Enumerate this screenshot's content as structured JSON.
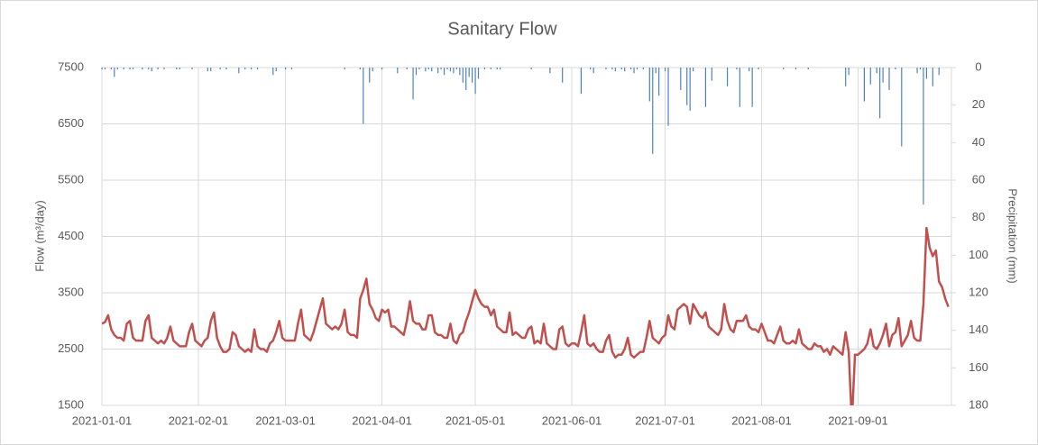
{
  "chart_data": {
    "type": "line_bar",
    "title": "Sanitary Flow",
    "y_label": "Flow (m³/day)",
    "y2_label": "Precipitation (mm)",
    "x": [
      "2021-01-01",
      "2021-01-02",
      "2021-01-03",
      "2021-01-04",
      "2021-01-05",
      "2021-01-06",
      "2021-01-07",
      "2021-01-08",
      "2021-01-09",
      "2021-01-10",
      "2021-01-11",
      "2021-01-12",
      "2021-01-13",
      "2021-01-14",
      "2021-01-15",
      "2021-01-16",
      "2021-01-17",
      "2021-01-18",
      "2021-01-19",
      "2021-01-20",
      "2021-01-21",
      "2021-01-22",
      "2021-01-23",
      "2021-01-24",
      "2021-01-25",
      "2021-01-26",
      "2021-01-27",
      "2021-01-28",
      "2021-01-29",
      "2021-01-30",
      "2021-01-31",
      "2021-02-01",
      "2021-02-02",
      "2021-02-03",
      "2021-02-04",
      "2021-02-05",
      "2021-02-06",
      "2021-02-07",
      "2021-02-08",
      "2021-02-09",
      "2021-02-10",
      "2021-02-11",
      "2021-02-12",
      "2021-02-13",
      "2021-02-14",
      "2021-02-15",
      "2021-02-16",
      "2021-02-17",
      "2021-02-18",
      "2021-02-19",
      "2021-02-20",
      "2021-02-21",
      "2021-02-22",
      "2021-02-23",
      "2021-02-24",
      "2021-02-25",
      "2021-02-26",
      "2021-02-27",
      "2021-02-28",
      "2021-03-01",
      "2021-03-02",
      "2021-03-03",
      "2021-03-04",
      "2021-03-05",
      "2021-03-06",
      "2021-03-07",
      "2021-03-08",
      "2021-03-09",
      "2021-03-10",
      "2021-03-11",
      "2021-03-12",
      "2021-03-13",
      "2021-03-14",
      "2021-03-15",
      "2021-03-16",
      "2021-03-17",
      "2021-03-18",
      "2021-03-19",
      "2021-03-20",
      "2021-03-21",
      "2021-03-22",
      "2021-03-23",
      "2021-03-24",
      "2021-03-25",
      "2021-03-26",
      "2021-03-27",
      "2021-03-28",
      "2021-03-29",
      "2021-03-30",
      "2021-03-31",
      "2021-04-01",
      "2021-04-02",
      "2021-04-03",
      "2021-04-04",
      "2021-04-05",
      "2021-04-06",
      "2021-04-07",
      "2021-04-08",
      "2021-04-09",
      "2021-04-10",
      "2021-04-11",
      "2021-04-12",
      "2021-04-13",
      "2021-04-14",
      "2021-04-15",
      "2021-04-16",
      "2021-04-17",
      "2021-04-18",
      "2021-04-19",
      "2021-04-20",
      "2021-04-21",
      "2021-04-22",
      "2021-04-23",
      "2021-04-24",
      "2021-04-25",
      "2021-04-26",
      "2021-04-27",
      "2021-04-28",
      "2021-04-29",
      "2021-04-30",
      "2021-05-01",
      "2021-05-02",
      "2021-05-03",
      "2021-05-04",
      "2021-05-05",
      "2021-05-06",
      "2021-05-07",
      "2021-05-08",
      "2021-05-09",
      "2021-05-10",
      "2021-05-11",
      "2021-05-12",
      "2021-05-13",
      "2021-05-14",
      "2021-05-15",
      "2021-05-16",
      "2021-05-17",
      "2021-05-18",
      "2021-05-19",
      "2021-05-20",
      "2021-05-21",
      "2021-05-22",
      "2021-05-23",
      "2021-05-24",
      "2021-05-25",
      "2021-05-26",
      "2021-05-27",
      "2021-05-28",
      "2021-05-29",
      "2021-05-30",
      "2021-05-31",
      "2021-06-01",
      "2021-06-02",
      "2021-06-03",
      "2021-06-04",
      "2021-06-05",
      "2021-06-06",
      "2021-06-07",
      "2021-06-08",
      "2021-06-09",
      "2021-06-10",
      "2021-06-11",
      "2021-06-12",
      "2021-06-13",
      "2021-06-14",
      "2021-06-15",
      "2021-06-16",
      "2021-06-17",
      "2021-06-18",
      "2021-06-19",
      "2021-06-20",
      "2021-06-21",
      "2021-06-22",
      "2021-06-23",
      "2021-06-24",
      "2021-06-25",
      "2021-06-26",
      "2021-06-27",
      "2021-06-28",
      "2021-06-29",
      "2021-06-30",
      "2021-07-01",
      "2021-07-02",
      "2021-07-03",
      "2021-07-04",
      "2021-07-05",
      "2021-07-06",
      "2021-07-07",
      "2021-07-08",
      "2021-07-09",
      "2021-07-10",
      "2021-07-11",
      "2021-07-12",
      "2021-07-13",
      "2021-07-14",
      "2021-07-15",
      "2021-07-16",
      "2021-07-17",
      "2021-07-18",
      "2021-07-19",
      "2021-07-20",
      "2021-07-21",
      "2021-07-22",
      "2021-07-23",
      "2021-07-24",
      "2021-07-25",
      "2021-07-26",
      "2021-07-27",
      "2021-07-28",
      "2021-07-29",
      "2021-07-30",
      "2021-07-31",
      "2021-08-01",
      "2021-08-02",
      "2021-08-03",
      "2021-08-04",
      "2021-08-05",
      "2021-08-06",
      "2021-08-07",
      "2021-08-08",
      "2021-08-09",
      "2021-08-10",
      "2021-08-11",
      "2021-08-12",
      "2021-08-13",
      "2021-08-14",
      "2021-08-15",
      "2021-08-16",
      "2021-08-17",
      "2021-08-18",
      "2021-08-19",
      "2021-08-20",
      "2021-08-21",
      "2021-08-22",
      "2021-08-23",
      "2021-08-24",
      "2021-08-25",
      "2021-08-26",
      "2021-08-27",
      "2021-08-28",
      "2021-08-29",
      "2021-08-30",
      "2021-08-31",
      "2021-09-01",
      "2021-09-02",
      "2021-09-03",
      "2021-09-04",
      "2021-09-05",
      "2021-09-06",
      "2021-09-07",
      "2021-09-08",
      "2021-09-09",
      "2021-09-10",
      "2021-09-11",
      "2021-09-12",
      "2021-09-13",
      "2021-09-14",
      "2021-09-15",
      "2021-09-16",
      "2021-09-17",
      "2021-09-18",
      "2021-09-19",
      "2021-09-20",
      "2021-09-21",
      "2021-09-22",
      "2021-09-23",
      "2021-09-24",
      "2021-09-25",
      "2021-09-26",
      "2021-09-27",
      "2021-09-28",
      "2021-09-29",
      "2021-09-30"
    ],
    "series": [
      {
        "type": "line",
        "axis": "y",
        "color": "#c0504d",
        "values": [
          2950,
          2980,
          3100,
          2850,
          2750,
          2700,
          2700,
          2650,
          2950,
          3000,
          2700,
          2650,
          2650,
          2650,
          3000,
          3100,
          2700,
          2650,
          2600,
          2650,
          2600,
          2700,
          2900,
          2650,
          2600,
          2550,
          2550,
          2550,
          2800,
          2950,
          2650,
          2600,
          2550,
          2650,
          2700,
          3000,
          3150,
          2700,
          2550,
          2450,
          2450,
          2500,
          2800,
          2750,
          2550,
          2500,
          2450,
          2500,
          2450,
          2850,
          2550,
          2500,
          2500,
          2450,
          2600,
          2650,
          2800,
          3000,
          2700,
          2650,
          2650,
          2650,
          2650,
          2950,
          3200,
          2750,
          2700,
          2650,
          2800,
          3000,
          3200,
          3400,
          2950,
          2900,
          2850,
          2900,
          2850,
          2950,
          3200,
          2800,
          2750,
          2750,
          2700,
          3400,
          3550,
          3750,
          3300,
          3200,
          3050,
          3000,
          3200,
          3150,
          3200,
          2900,
          2900,
          2850,
          2800,
          2750,
          3000,
          3350,
          3000,
          2950,
          2950,
          2850,
          2850,
          3100,
          3100,
          2800,
          2750,
          2750,
          2700,
          2700,
          2950,
          2650,
          2600,
          2750,
          2800,
          3000,
          3150,
          3350,
          3550,
          3400,
          3300,
          3250,
          3250,
          3100,
          3200,
          2900,
          2850,
          2800,
          2800,
          3150,
          2750,
          2800,
          2750,
          2700,
          2700,
          2850,
          2900,
          2600,
          2650,
          2600,
          2950,
          2600,
          2550,
          2500,
          2500,
          2850,
          2900,
          2600,
          2550,
          2600,
          2600,
          2550,
          2800,
          3100,
          2600,
          2550,
          2600,
          2500,
          2450,
          2450,
          2650,
          2750,
          2450,
          2350,
          2400,
          2400,
          2500,
          2700,
          2400,
          2350,
          2400,
          2450,
          2450,
          2700,
          3000,
          2700,
          2650,
          2600,
          2700,
          2750,
          3100,
          2900,
          2850,
          3200,
          3250,
          3300,
          3250,
          2950,
          3300,
          3200,
          3100,
          3050,
          3150,
          2900,
          2850,
          2800,
          2750,
          2850,
          3300,
          3000,
          2850,
          2800,
          3000,
          3000,
          3000,
          3100,
          2900,
          2850,
          2850,
          2800,
          2950,
          2800,
          2650,
          2650,
          2600,
          2750,
          2900,
          2650,
          2600,
          2600,
          2650,
          2600,
          2850,
          2600,
          2550,
          2500,
          2500,
          2600,
          2550,
          2550,
          2450,
          2500,
          2400,
          2550,
          2500,
          2450,
          2400,
          2800,
          2450,
          1200,
          2400,
          2400,
          2450,
          2500,
          2600,
          2850,
          2550,
          2500,
          2600,
          2750,
          2950,
          2550,
          2750,
          2800,
          3050,
          2550,
          2650,
          2750,
          3000,
          2700,
          2650,
          2650,
          3300,
          4650,
          4300,
          4150,
          4250,
          3700,
          3600,
          3400,
          3250
        ]
      },
      {
        "type": "bar",
        "axis": "y2",
        "color": "#4f81bd",
        "values": [
          1,
          1,
          0,
          1,
          5,
          1,
          0,
          1,
          0,
          1,
          1,
          0,
          0,
          1,
          0,
          1,
          2,
          0,
          1,
          0,
          1,
          0,
          0,
          0,
          1,
          1,
          0,
          0,
          0,
          1,
          0,
          0,
          0,
          0,
          2,
          2,
          0,
          0,
          1,
          0,
          1,
          0,
          0,
          0,
          3,
          0,
          1,
          0,
          1,
          0,
          1,
          0,
          0,
          0,
          0,
          4,
          2,
          0,
          0,
          1,
          0,
          1,
          0,
          0,
          0,
          0,
          0,
          0,
          0,
          0,
          0,
          0,
          0,
          0,
          0,
          0,
          0,
          0,
          1,
          0,
          0,
          0,
          0,
          1,
          30,
          0,
          8,
          2,
          0,
          0,
          1,
          0,
          0,
          0,
          0,
          3,
          0,
          0,
          1,
          0,
          17,
          4,
          1,
          0,
          2,
          1,
          2,
          0,
          3,
          1,
          4,
          1,
          2,
          3,
          1,
          4,
          8,
          12,
          5,
          8,
          14,
          6,
          0,
          1,
          0,
          1,
          0,
          1,
          1,
          0,
          0,
          0,
          0,
          0,
          0,
          0,
          0,
          0,
          1,
          0,
          0,
          0,
          0,
          0,
          3,
          0,
          0,
          0,
          8,
          0,
          0,
          0,
          0,
          0,
          14,
          0,
          0,
          1,
          3,
          0,
          0,
          0,
          1,
          0,
          1,
          2,
          0,
          1,
          2,
          0,
          1,
          3,
          1,
          0,
          1,
          0,
          18,
          46,
          3,
          15,
          0,
          2,
          31,
          0,
          0,
          0,
          12,
          0,
          20,
          23,
          2,
          0,
          0,
          0,
          21,
          0,
          7,
          0,
          0,
          0,
          0,
          10,
          0,
          0,
          1,
          21,
          0,
          0,
          2,
          21,
          0,
          1,
          0,
          0,
          0,
          0,
          0,
          0,
          0,
          1,
          0,
          0,
          0,
          1,
          0,
          0,
          0,
          1,
          0,
          0,
          0,
          0,
          0,
          0,
          0,
          0,
          0,
          0,
          0,
          10,
          4,
          0,
          0,
          0,
          0,
          18,
          0,
          9,
          0,
          3,
          27,
          8,
          0,
          12,
          0,
          1,
          0,
          42,
          0,
          0,
          0,
          0,
          3,
          1,
          73,
          6,
          0,
          10,
          0,
          4,
          0,
          0,
          0
        ]
      }
    ],
    "xlim": [
      "2021-01-01",
      "2021-10-01"
    ],
    "xticks": [
      "2021-01-01",
      "2021-02-01",
      "2021-03-01",
      "2021-04-01",
      "2021-05-01",
      "2021-06-01",
      "2021-07-01",
      "2021-08-01",
      "2021-09-01"
    ],
    "ylim": [
      1500,
      7500
    ],
    "yticks": [
      1500,
      2500,
      3500,
      4500,
      5500,
      6500,
      7500
    ],
    "y2lim": [
      0,
      180
    ],
    "y2_inverted": true,
    "y2ticks": [
      0,
      20,
      40,
      60,
      80,
      100,
      120,
      140,
      160,
      180
    ],
    "grid": true
  }
}
